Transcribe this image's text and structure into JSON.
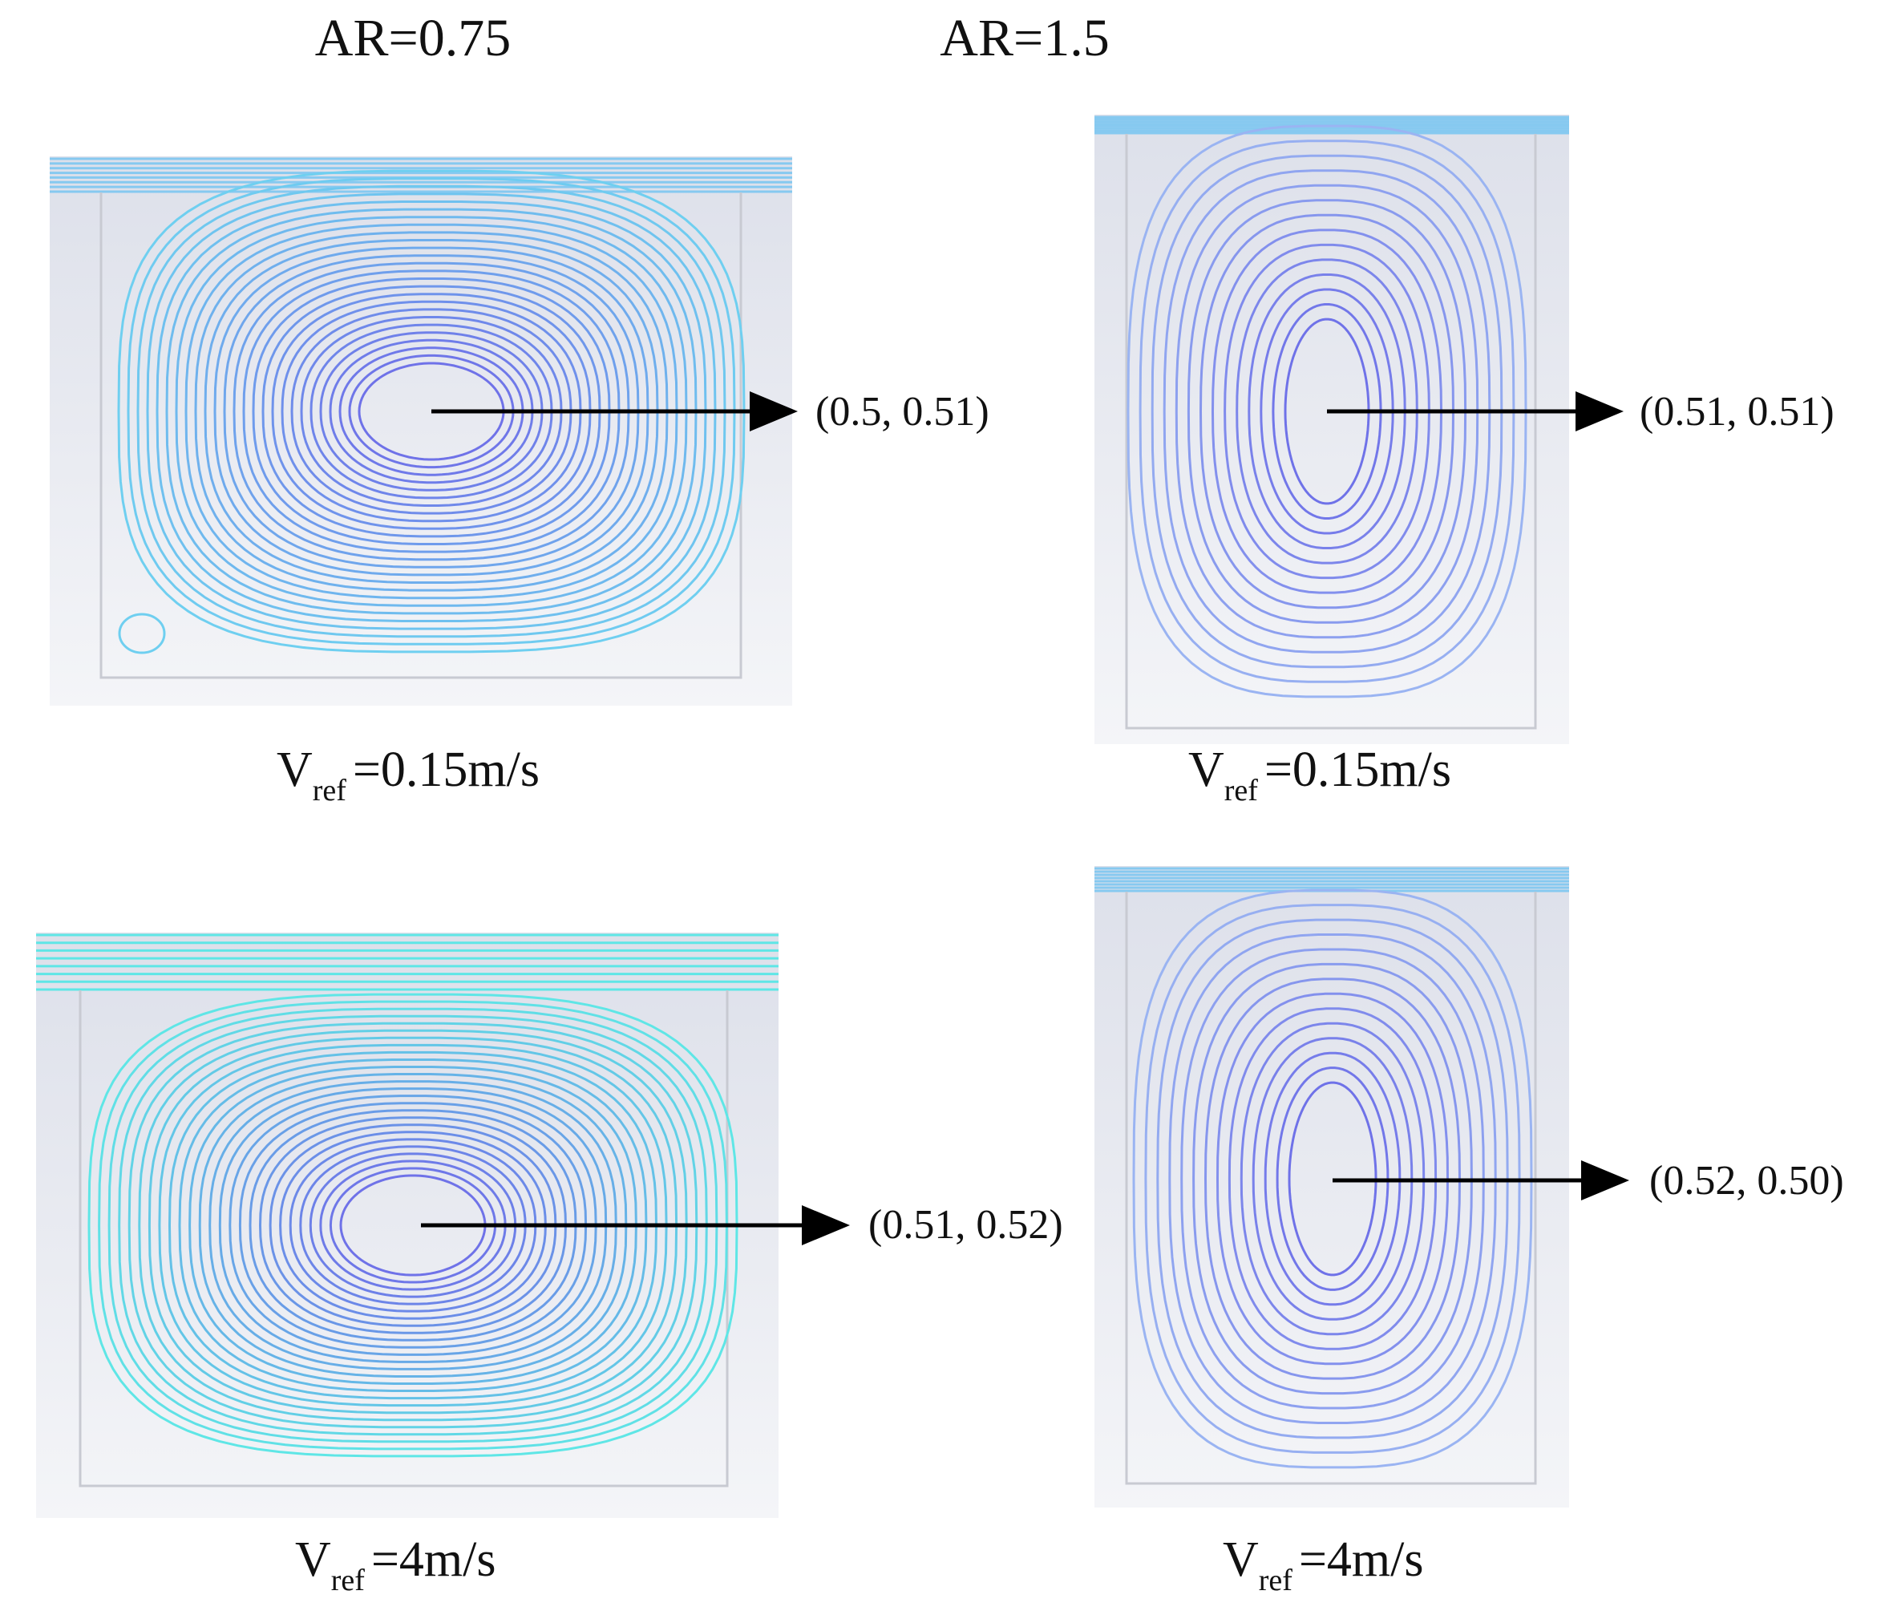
{
  "columns": [
    {
      "title": "AR=0.75"
    },
    {
      "title": "AR=1.5"
    }
  ],
  "panels": [
    {
      "id": "p1",
      "aspect_ratio": 0.75,
      "vref_symbol": "V",
      "vref_sub": "ref",
      "vref_value": "=0.15m/s",
      "vortex_center": "(0.5, 0.51)",
      "corner_eddy": true
    },
    {
      "id": "p2",
      "aspect_ratio": 1.5,
      "vref_symbol": "V",
      "vref_sub": "ref",
      "vref_value": "=0.15m/s",
      "vortex_center": "(0.51, 0.51)",
      "corner_eddy": false
    },
    {
      "id": "p3",
      "aspect_ratio": 0.75,
      "vref_symbol": "V",
      "vref_sub": "ref",
      "vref_value": "=4m/s",
      "vortex_center": "(0.51, 0.52)",
      "corner_eddy": false
    },
    {
      "id": "p4",
      "aspect_ratio": 1.5,
      "vref_symbol": "V",
      "vref_sub": "ref",
      "vref_value": "=4m/s",
      "vortex_center": "(0.52, 0.50)",
      "corner_eddy": false
    }
  ],
  "colors": {
    "streamline_inner": "#6f72e8",
    "streamline_outer_low": "#6fcff0",
    "streamline_outer_high": "#5fe6e6",
    "lid_flow": "#86c9f0",
    "background_top": "#dde0ea",
    "background_bottom": "#f4f5f8",
    "arrow": "#000000"
  }
}
